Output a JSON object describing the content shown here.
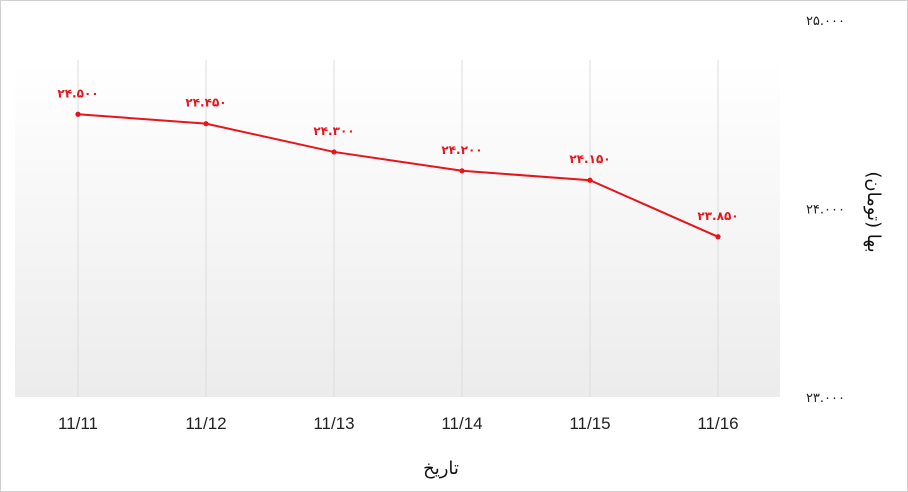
{
  "chart_data": {
    "type": "line",
    "title": "",
    "xlabel": "تاریخ",
    "ylabel": "بها (تومان)",
    "categories": [
      "11/11",
      "11/12",
      "11/13",
      "11/14",
      "11/15",
      "11/16"
    ],
    "series": [
      {
        "values": [
          24500,
          24450,
          24300,
          24200,
          24150,
          23850
        ],
        "value_labels": [
          "۲۴.۵۰۰",
          "۲۴.۴۵۰",
          "۲۴.۳۰۰",
          "۲۴.۲۰۰",
          "۲۴.۱۵۰",
          "۲۳.۸۵۰"
        ]
      }
    ],
    "ylim": [
      23000,
      25000
    ],
    "y_ticks": [
      {
        "value": 25000,
        "label": "۲۵.۰۰۰"
      },
      {
        "value": 24000,
        "label": "۲۴.۰۰۰"
      },
      {
        "value": 23000,
        "label": "۲۳.۰۰۰"
      }
    ],
    "y_axis_side": "right",
    "grid": "vertical",
    "legend": "none",
    "colors": {
      "line": "#e8141b",
      "plot_gradient_top": "#ffffff",
      "plot_gradient_bottom": "#ececec"
    }
  }
}
